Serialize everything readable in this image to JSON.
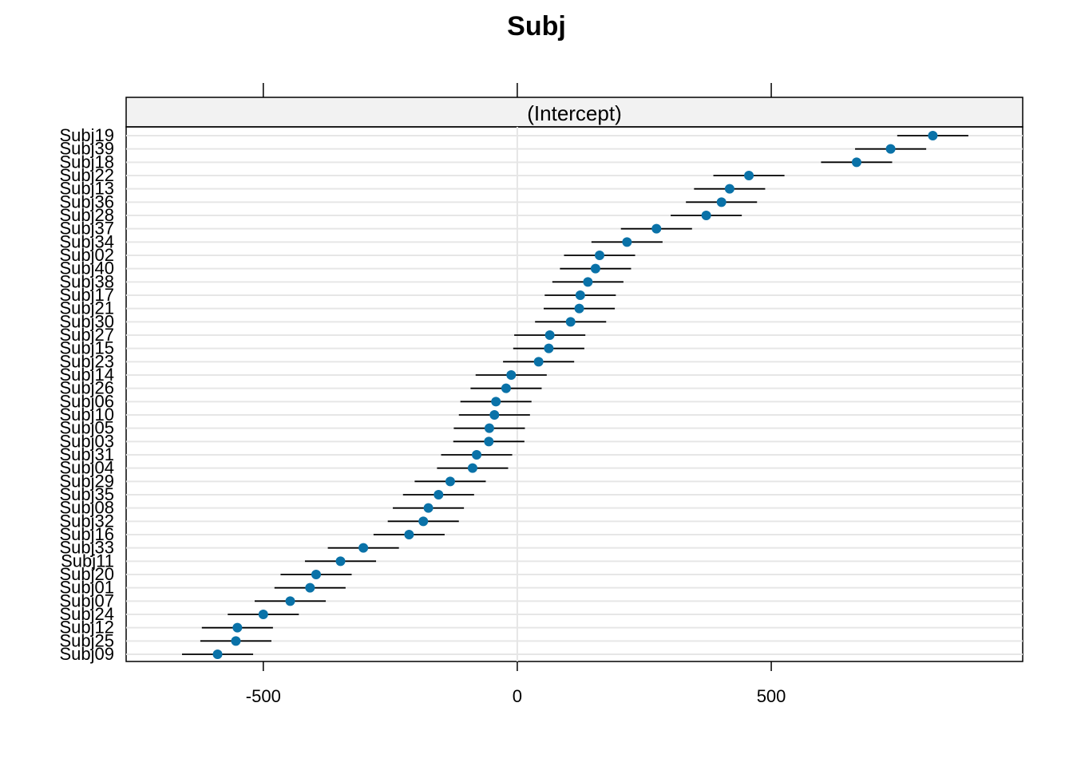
{
  "chart_data": {
    "type": "dotplot-errorbar",
    "title": "Subj",
    "panel": "(Intercept)",
    "xlim": [
      -770,
      995
    ],
    "x_ticks": [
      -500,
      0,
      500
    ],
    "x_tick_labels": [
      "-500",
      "0",
      "500"
    ],
    "grid": true,
    "colors": {
      "point": "#0a72a8",
      "interval": "#000000",
      "gridline": "#e6e6e6",
      "strip": "#f2f2f2"
    },
    "categories": [
      "Subj19",
      "Subj39",
      "Subj18",
      "Subj22",
      "Subj13",
      "Subj36",
      "Subj28",
      "Subj37",
      "Subj34",
      "Subj02",
      "Subj40",
      "Subj38",
      "Subj17",
      "Subj21",
      "Subj30",
      "Subj27",
      "Subj15",
      "Subj23",
      "Subj14",
      "Subj26",
      "Subj06",
      "Subj10",
      "Subj05",
      "Subj03",
      "Subj31",
      "Subj04",
      "Subj29",
      "Subj35",
      "Subj08",
      "Subj32",
      "Subj16",
      "Subj33",
      "Subj11",
      "Subj20",
      "Subj01",
      "Subj07",
      "Subj24",
      "Subj12",
      "Subj25",
      "Subj09"
    ],
    "values": [
      818,
      735,
      668,
      456,
      418,
      402,
      372,
      274,
      216,
      162,
      154,
      139,
      124,
      122,
      105,
      64,
      62,
      42,
      -12,
      -22,
      -42,
      -45,
      -55,
      -56,
      -80,
      -88,
      -132,
      -155,
      -175,
      -185,
      -213,
      -303,
      -348,
      -396,
      -408,
      -447,
      -500,
      -551,
      -554,
      -590
    ],
    "lower": [
      748,
      665,
      598,
      386,
      348,
      332,
      302,
      204,
      146,
      92,
      84,
      69,
      54,
      52,
      35,
      -6,
      -8,
      -28,
      -82,
      -92,
      -112,
      -115,
      -125,
      -126,
      -150,
      -158,
      -202,
      -225,
      -245,
      -255,
      -283,
      -373,
      -418,
      -466,
      -478,
      -517,
      -570,
      -621,
      -624,
      -660
    ],
    "upper": [
      888,
      805,
      738,
      526,
      488,
      472,
      442,
      344,
      286,
      232,
      224,
      209,
      194,
      192,
      175,
      134,
      132,
      112,
      58,
      48,
      28,
      25,
      15,
      14,
      -10,
      -18,
      -62,
      -85,
      -105,
      -115,
      -143,
      -233,
      -278,
      -326,
      -338,
      -377,
      -430,
      -481,
      -484,
      -520
    ]
  }
}
